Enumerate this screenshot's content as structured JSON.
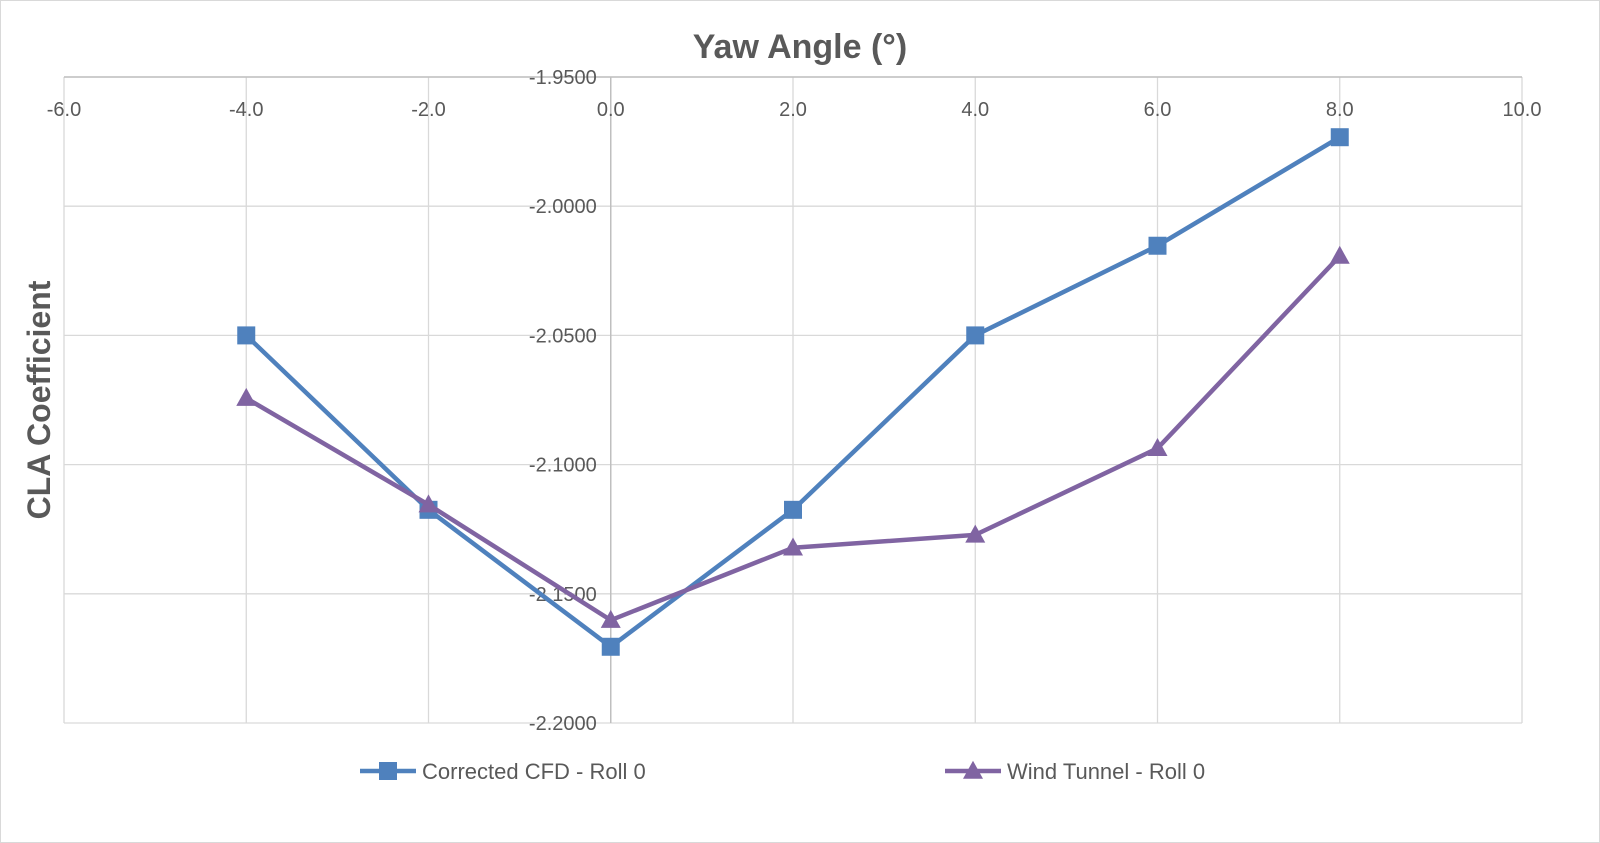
{
  "chart_data": {
    "type": "line",
    "title": "Yaw Angle (°)",
    "xlabel": "",
    "ylabel": "CLA Coefficient",
    "xlim": [
      -6.0,
      10.0
    ],
    "ylim": [
      -2.2,
      -1.95
    ],
    "x_ticks": [
      "-6.0",
      "-4.0",
      "-2.0",
      "0.0",
      "2.0",
      "4.0",
      "6.0",
      "8.0",
      "10.0"
    ],
    "x_tick_values": [
      -6,
      -4,
      -2,
      0,
      2,
      4,
      6,
      8,
      10
    ],
    "y_ticks": [
      "-1.9500",
      "-2.0000",
      "-2.0500",
      "-2.1000",
      "-2.1500",
      "-2.2000"
    ],
    "y_tick_values": [
      -1.95,
      -2.0,
      -2.05,
      -2.1,
      -2.15,
      -2.2
    ],
    "grid": true,
    "legend_position": "bottom",
    "x_axis_position": "top",
    "y_axis_crosses_at_x": 0,
    "series": [
      {
        "name": "Corrected CFD - Roll 0",
        "color": "#4f81bd",
        "marker": "square",
        "x": [
          -4,
          -2,
          0,
          2,
          4,
          6,
          8
        ],
        "y": [
          -2.05,
          -2.1175,
          -2.1705,
          -2.1175,
          -2.05,
          -2.0153,
          -1.9733
        ]
      },
      {
        "name": "Wind Tunnel - Roll 0",
        "color": "#8064a2",
        "marker": "triangle",
        "x": [
          -4,
          -2,
          0,
          2,
          4,
          6,
          8
        ],
        "y": [
          -2.0743,
          -2.1155,
          -2.1602,
          -2.1322,
          -2.1272,
          -2.0937,
          -2.0193
        ]
      }
    ]
  }
}
